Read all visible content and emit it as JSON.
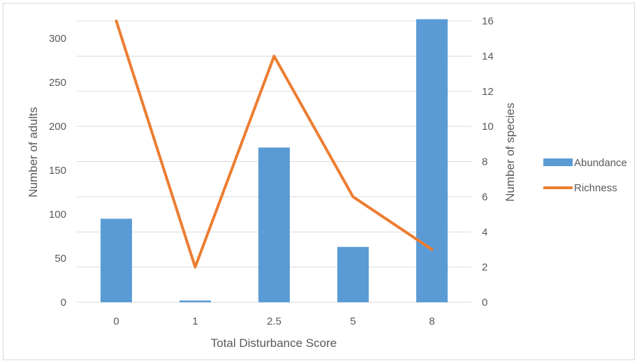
{
  "chart_data": {
    "type": "bar",
    "categories": [
      "0",
      "1",
      "2.5",
      "5",
      "8"
    ],
    "series": [
      {
        "name": "Abundance",
        "type": "bar",
        "axis": "left",
        "values": [
          95,
          2,
          176,
          63,
          322
        ]
      },
      {
        "name": "Richness",
        "type": "line",
        "axis": "right",
        "values": [
          16,
          2,
          14,
          6,
          3
        ]
      }
    ],
    "xlabel": "Total Disturbance Score",
    "ylabel": "Number of adults",
    "y2label": "Number of species",
    "ylim": [
      0,
      320
    ],
    "y2lim": [
      0,
      16
    ],
    "yticks": [
      0,
      50,
      100,
      150,
      200,
      250,
      300
    ],
    "y2ticks": [
      0,
      2,
      4,
      6,
      8,
      10,
      12,
      14,
      16
    ],
    "grid": true,
    "legend": "right",
    "colors": {
      "Abundance": "#5b9bd5",
      "Richness": "#ed7d31",
      "grid": "#d9d9d9",
      "text": "#595959"
    }
  }
}
